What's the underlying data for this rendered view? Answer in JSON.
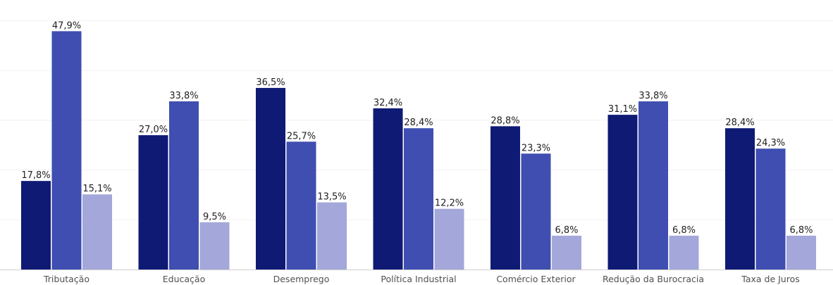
{
  "chart_data": {
    "type": "bar",
    "categories": [
      "Tributação",
      "Educação",
      "Desemprego",
      "Política Industrial",
      "Comércio Exterior",
      "Redução da Burocracia",
      "Taxa de Juros"
    ],
    "series": [
      {
        "values": [
          17.8,
          27.0,
          36.5,
          32.4,
          28.8,
          31.1,
          28.4
        ],
        "color": "#0f1a75"
      },
      {
        "values": [
          47.9,
          33.8,
          25.7,
          28.4,
          23.3,
          33.8,
          24.3
        ],
        "color": "#3f4eb0"
      },
      {
        "values": [
          15.1,
          9.5,
          13.5,
          12.2,
          6.8,
          6.8,
          6.8
        ],
        "color": "#a3a7da"
      }
    ],
    "value_labels": [
      [
        "17,8%",
        "27,0%",
        "36,5%",
        "32,4%",
        "28,8%",
        "31,1%",
        "28,4%"
      ],
      [
        "47,9%",
        "33,8%",
        "25,7%",
        "28,4%",
        "23,3%",
        "33,8%",
        "24,3%"
      ],
      [
        "15,1%",
        "9,5%",
        "13,5%",
        "12,2%",
        "6,8%",
        "6,8%",
        "6,8%"
      ]
    ],
    "ylim": [
      0,
      50
    ],
    "gridlines": true,
    "legend": "none"
  }
}
